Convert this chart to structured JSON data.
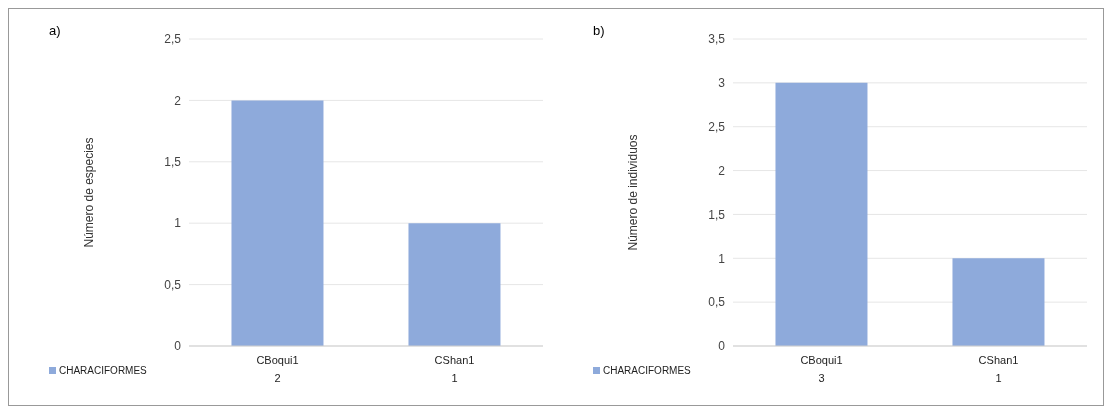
{
  "chart_data": [
    {
      "type": "bar",
      "annotations": [
        "a)"
      ],
      "ylabel": "Número de especies",
      "categories": [
        "CBoqui1",
        "CShan1"
      ],
      "series": [
        {
          "name": "CHARACIFORMES",
          "color": "#8eaadb",
          "values": [
            2,
            1
          ]
        }
      ],
      "ylim": [
        0,
        2.5
      ],
      "yticks": [
        0,
        {
          "value": 0.5,
          "label": "0,5"
        },
        1,
        {
          "value": 1.5,
          "label": "1,5"
        },
        2,
        {
          "value": 2.5,
          "label": "2,5"
        }
      ],
      "grid": "y",
      "legend": "bottom left",
      "data_labels": true
    },
    {
      "type": "bar",
      "annotations": [
        "b)"
      ],
      "ylabel": "Número de individuos",
      "categories": [
        "CBoqui1",
        "CShan1"
      ],
      "series": [
        {
          "name": "CHARACIFORMES",
          "color": "#8eaadb",
          "values": [
            3,
            1
          ]
        }
      ],
      "ylim": [
        0,
        3.5
      ],
      "yticks": [
        0,
        {
          "value": 0.5,
          "label": "0,5"
        },
        1,
        {
          "value": 1.5,
          "label": "1,5"
        },
        2,
        {
          "value": 2.5,
          "label": "2,5"
        },
        3,
        {
          "value": 3.5,
          "label": "3,5"
        }
      ],
      "grid": "y",
      "legend": "bottom left",
      "data_labels": true
    }
  ]
}
